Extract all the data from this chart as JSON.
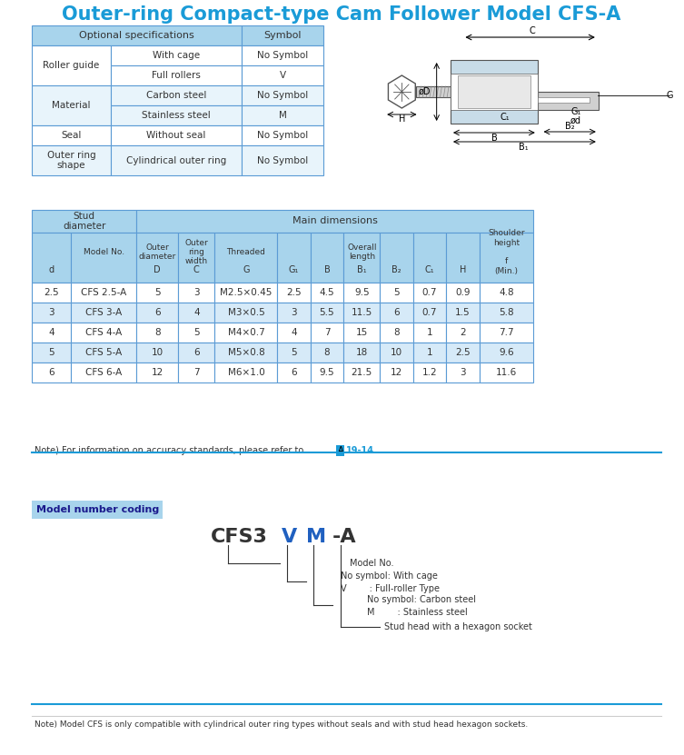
{
  "title": "Outer-ring Compact-type Cam Follower Model CFS-A",
  "title_color": "#1a9bd7",
  "bg_color": "#ffffff",
  "opt_table_header_bg": "#a8d4ec",
  "opt_table_row_bg1": "#ffffff",
  "opt_table_row_bg2": "#e8f4fb",
  "opt_table_rows": [
    [
      "Roller guide",
      "With cage",
      "No Symbol"
    ],
    [
      "Roller guide",
      "Full rollers",
      "V"
    ],
    [
      "Material",
      "Carbon steel",
      "No Symbol"
    ],
    [
      "Material",
      "Stainless steel",
      "M"
    ],
    [
      "Seal",
      "Without seal",
      "No Symbol"
    ],
    [
      "Outer ring\nshape",
      "Cylindrical outer ring",
      "No Symbol"
    ]
  ],
  "main_table_header_bg": "#a8d4ec",
  "main_table_row_bg1": "#ffffff",
  "main_table_row_bg2": "#d6eaf8",
  "main_table_rows": [
    [
      "2.5",
      "CFS 2.5-A",
      "5",
      "3",
      "M2.5×0.45",
      "2.5",
      "4.5",
      "9.5",
      "5",
      "0.7",
      "0.9",
      "4.8"
    ],
    [
      "3",
      "CFS 3-A",
      "6",
      "4",
      "M3×0.5",
      "3",
      "5.5",
      "11.5",
      "6",
      "0.7",
      "1.5",
      "5.8"
    ],
    [
      "4",
      "CFS 4-A",
      "8",
      "5",
      "M4×0.7",
      "4",
      "7",
      "15",
      "8",
      "1",
      "2",
      "7.7"
    ],
    [
      "5",
      "CFS 5-A",
      "10",
      "6",
      "M5×0.8",
      "5",
      "8",
      "18",
      "10",
      "1",
      "2.5",
      "9.6"
    ],
    [
      "6",
      "CFS 6-A",
      "12",
      "7",
      "M6×1.0",
      "6",
      "9.5",
      "21.5",
      "12",
      "1.2",
      "3",
      "11.6"
    ]
  ],
  "note1": "Note) For information on accuracy standards, please refer to  A19-14.",
  "note2": "Note) Model CFS is only compatible with cylindrical outer ring types without seals and with stud head hexagon sockets.",
  "model_coding_label": "Model number coding",
  "model_coding_text": "CFS3  V  M  -A",
  "coding_annotations": [
    [
      "Model No.",
      0
    ],
    [
      "No symbol: With cage",
      1
    ],
    [
      "V        : Full-roller Type",
      1
    ],
    [
      "No symbol: Carbon steel",
      2
    ],
    [
      "M        : Stainless steel",
      2
    ],
    [
      "Stud head with a hexagon socket",
      3
    ]
  ],
  "blue_line_color": "#1a9bd7",
  "table_border_color": "#5b9bd5",
  "text_color": "#404040"
}
